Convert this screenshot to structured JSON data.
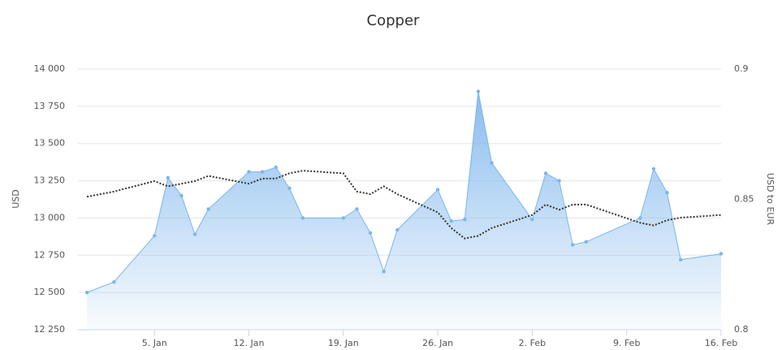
{
  "chart_data": {
    "type": "area",
    "title": "Copper",
    "y_label": "USD",
    "y2_label": "USD to EUR",
    "x": [
      0,
      2,
      5,
      6,
      7,
      8,
      9,
      12,
      13,
      14,
      15,
      16,
      19,
      20,
      21,
      22,
      23,
      26,
      27,
      28,
      29,
      30,
      33,
      34,
      35,
      36,
      37,
      41,
      42,
      43,
      44,
      47
    ],
    "xlim": [
      -0.67,
      47
    ],
    "xticks": [
      {
        "value": 5,
        "label": "5. Jan"
      },
      {
        "value": 12,
        "label": "12. Jan"
      },
      {
        "value": 19,
        "label": "19. Jan"
      },
      {
        "value": 26,
        "label": "26. Jan"
      },
      {
        "value": 33,
        "label": "2. Feb"
      },
      {
        "value": 40,
        "label": "9. Feb"
      },
      {
        "value": 47,
        "label": "16. Feb"
      }
    ],
    "ylim": [
      12250,
      14000
    ],
    "yticks": [
      {
        "value": 12250,
        "label": "12 250"
      },
      {
        "value": 12500,
        "label": "12 500"
      },
      {
        "value": 12750,
        "label": "12 750"
      },
      {
        "value": 13000,
        "label": "13 000"
      },
      {
        "value": 13250,
        "label": "13 250"
      },
      {
        "value": 13500,
        "label": "13 500"
      },
      {
        "value": 13750,
        "label": "13 750"
      },
      {
        "value": 14000,
        "label": "14 000"
      }
    ],
    "y2lim": [
      0.8,
      0.9
    ],
    "y2ticks": [
      0.8,
      0.85,
      0.9
    ],
    "grid": true,
    "series": [
      {
        "color": "#7cb5ec",
        "values": [
          12500,
          12570,
          12880,
          13270,
          13150,
          12890,
          13060,
          13310,
          13310,
          13340,
          13200,
          13000,
          13000,
          13060,
          12900,
          12640,
          12920,
          13190,
          12980,
          12990,
          13850,
          13370,
          12990,
          13300,
          13250,
          12820,
          12840,
          13000,
          13330,
          13170,
          12720,
          12760
        ]
      },
      {
        "type": "line",
        "axis": "y2",
        "style": "dotted",
        "color": "#333333",
        "values": [
          0.851,
          0.853,
          0.857,
          0.855,
          0.856,
          0.857,
          0.859,
          0.856,
          0.858,
          0.858,
          0.86,
          0.861,
          0.86,
          0.853,
          0.852,
          0.855,
          0.852,
          0.845,
          0.839,
          0.835,
          0.836,
          0.839,
          0.844,
          0.848,
          0.846,
          0.848,
          0.848,
          0.841,
          0.84,
          0.842,
          0.843,
          0.844
        ]
      }
    ]
  }
}
